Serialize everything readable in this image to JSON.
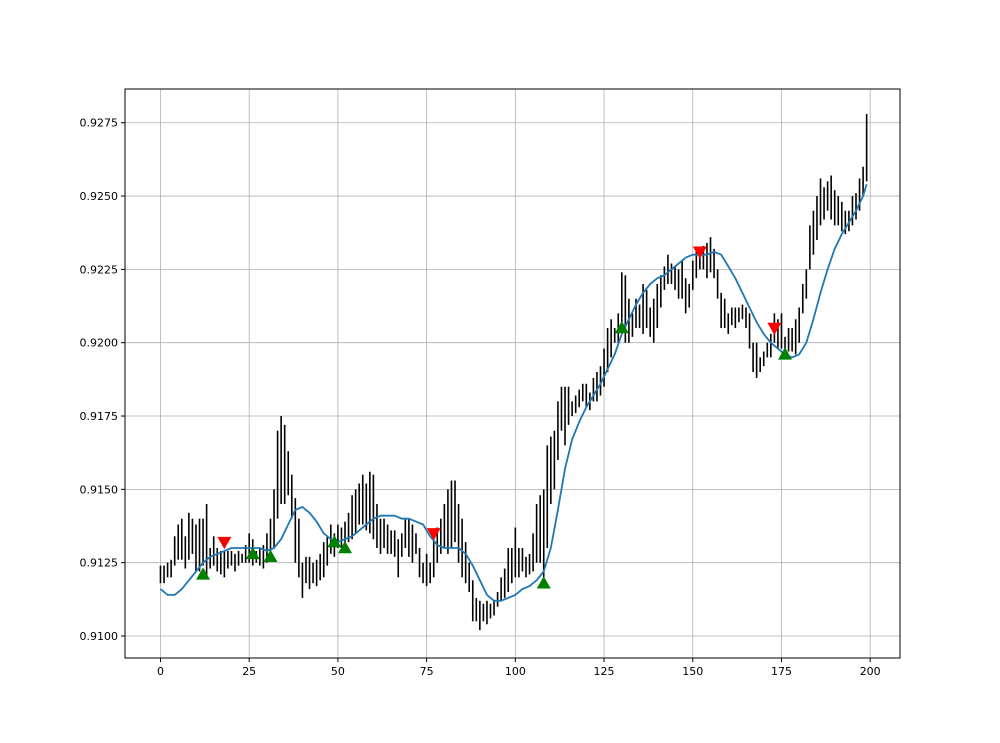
{
  "chart_data": {
    "type": "line",
    "title": "",
    "xlabel": "",
    "ylabel": "",
    "xlim": [
      -10,
      208.4
    ],
    "ylim": [
      0.90925,
      0.92865
    ],
    "x_ticks": [
      0,
      25,
      50,
      75,
      100,
      125,
      150,
      175,
      200
    ],
    "y_ticks": [
      0.91,
      0.9125,
      0.915,
      0.9175,
      0.92,
      0.9225,
      0.925,
      0.9275
    ],
    "x_tick_labels": [
      "0",
      "25",
      "50",
      "75",
      "100",
      "125",
      "150",
      "175",
      "200"
    ],
    "y_tick_labels": [
      "0.9100",
      "0.9125",
      "0.9150",
      "0.9175",
      "0.9200",
      "0.9225",
      "0.9250",
      "0.9275"
    ],
    "grid": true,
    "colors": {
      "bars": "#000000",
      "smooth_line": "#1f77b4",
      "buy_marker": "#008000",
      "sell_marker": "#ff0000",
      "grid": "#b0b0b0"
    },
    "ohlc_ranges": [
      [
        0,
        0.9118,
        0.9124
      ],
      [
        1,
        0.9118,
        0.9124
      ],
      [
        2,
        0.912,
        0.9125
      ],
      [
        3,
        0.912,
        0.9126
      ],
      [
        4,
        0.9124,
        0.9134
      ],
      [
        5,
        0.9126,
        0.9138
      ],
      [
        6,
        0.9126,
        0.914
      ],
      [
        7,
        0.9123,
        0.9134
      ],
      [
        8,
        0.9126,
        0.9142
      ],
      [
        9,
        0.9128,
        0.914
      ],
      [
        10,
        0.9122,
        0.9138
      ],
      [
        11,
        0.9122,
        0.914
      ],
      [
        12,
        0.9124,
        0.914
      ],
      [
        13,
        0.912,
        0.9145
      ],
      [
        14,
        0.9123,
        0.913
      ],
      [
        15,
        0.9124,
        0.9134
      ],
      [
        16,
        0.9122,
        0.913
      ],
      [
        17,
        0.9121,
        0.9129
      ],
      [
        18,
        0.912,
        0.9129
      ],
      [
        19,
        0.9123,
        0.9129
      ],
      [
        20,
        0.9124,
        0.9129
      ],
      [
        21,
        0.9122,
        0.9128
      ],
      [
        22,
        0.9124,
        0.9129
      ],
      [
        23,
        0.9125,
        0.9128
      ],
      [
        24,
        0.9125,
        0.9131
      ],
      [
        25,
        0.9125,
        0.9135
      ],
      [
        26,
        0.9124,
        0.9133
      ],
      [
        27,
        0.9125,
        0.9129
      ],
      [
        28,
        0.9124,
        0.913
      ],
      [
        29,
        0.9123,
        0.9131
      ],
      [
        30,
        0.9125,
        0.9135
      ],
      [
        31,
        0.9126,
        0.914
      ],
      [
        32,
        0.913,
        0.915
      ],
      [
        33,
        0.914,
        0.917
      ],
      [
        34,
        0.9145,
        0.9175
      ],
      [
        35,
        0.9145,
        0.9172
      ],
      [
        36,
        0.9148,
        0.9163
      ],
      [
        37,
        0.914,
        0.9155
      ],
      [
        38,
        0.9125,
        0.9147
      ],
      [
        39,
        0.912,
        0.914
      ],
      [
        40,
        0.9113,
        0.9125
      ],
      [
        41,
        0.9118,
        0.9127
      ],
      [
        42,
        0.9116,
        0.9127
      ],
      [
        43,
        0.9118,
        0.9125
      ],
      [
        44,
        0.9117,
        0.9126
      ],
      [
        45,
        0.9119,
        0.9128
      ],
      [
        46,
        0.912,
        0.9132
      ],
      [
        47,
        0.9124,
        0.9134
      ],
      [
        48,
        0.9128,
        0.9138
      ],
      [
        49,
        0.9127,
        0.9135
      ],
      [
        50,
        0.913,
        0.9138
      ],
      [
        51,
        0.913,
        0.9137
      ],
      [
        52,
        0.9131,
        0.9139
      ],
      [
        53,
        0.9132,
        0.9142
      ],
      [
        54,
        0.9133,
        0.9148
      ],
      [
        55,
        0.9135,
        0.915
      ],
      [
        56,
        0.9138,
        0.9152
      ],
      [
        57,
        0.9138,
        0.9155
      ],
      [
        58,
        0.9136,
        0.9152
      ],
      [
        59,
        0.9135,
        0.9156
      ],
      [
        60,
        0.9133,
        0.9155
      ],
      [
        61,
        0.913,
        0.9145
      ],
      [
        62,
        0.9128,
        0.914
      ],
      [
        63,
        0.913,
        0.914
      ],
      [
        64,
        0.9128,
        0.9138
      ],
      [
        65,
        0.9128,
        0.9136
      ],
      [
        66,
        0.9127,
        0.9136
      ],
      [
        67,
        0.912,
        0.9133
      ],
      [
        68,
        0.9127,
        0.9135
      ],
      [
        69,
        0.913,
        0.914
      ],
      [
        70,
        0.9127,
        0.914
      ],
      [
        71,
        0.9125,
        0.9138
      ],
      [
        72,
        0.9128,
        0.9135
      ],
      [
        73,
        0.912,
        0.913
      ],
      [
        74,
        0.9118,
        0.9125
      ],
      [
        75,
        0.9117,
        0.9128
      ],
      [
        76,
        0.9118,
        0.9125
      ],
      [
        77,
        0.912,
        0.9133
      ],
      [
        78,
        0.9125,
        0.9137
      ],
      [
        79,
        0.9128,
        0.914
      ],
      [
        80,
        0.913,
        0.9145
      ],
      [
        81,
        0.9128,
        0.915
      ],
      [
        82,
        0.913,
        0.9153
      ],
      [
        83,
        0.9132,
        0.9153
      ],
      [
        84,
        0.9125,
        0.9145
      ],
      [
        85,
        0.912,
        0.914
      ],
      [
        86,
        0.9118,
        0.9132
      ],
      [
        87,
        0.9115,
        0.9125
      ],
      [
        88,
        0.9105,
        0.9119
      ],
      [
        89,
        0.9105,
        0.9113
      ],
      [
        90,
        0.9102,
        0.9112
      ],
      [
        91,
        0.9105,
        0.9111
      ],
      [
        92,
        0.9104,
        0.9112
      ],
      [
        93,
        0.9106,
        0.9111
      ],
      [
        94,
        0.9107,
        0.9112
      ],
      [
        95,
        0.911,
        0.9115
      ],
      [
        96,
        0.9112,
        0.912
      ],
      [
        97,
        0.9113,
        0.9123
      ],
      [
        98,
        0.9115,
        0.913
      ],
      [
        99,
        0.9118,
        0.913
      ],
      [
        100,
        0.912,
        0.9137
      ],
      [
        101,
        0.912,
        0.913
      ],
      [
        102,
        0.9122,
        0.913
      ],
      [
        103,
        0.912,
        0.9127
      ],
      [
        104,
        0.9121,
        0.9128
      ],
      [
        105,
        0.9122,
        0.9135
      ],
      [
        106,
        0.9125,
        0.9145
      ],
      [
        107,
        0.9125,
        0.9148
      ],
      [
        108,
        0.912,
        0.915
      ],
      [
        109,
        0.913,
        0.9165
      ],
      [
        110,
        0.9145,
        0.9168
      ],
      [
        111,
        0.915,
        0.917
      ],
      [
        112,
        0.916,
        0.918
      ],
      [
        113,
        0.917,
        0.9185
      ],
      [
        114,
        0.9165,
        0.9185
      ],
      [
        115,
        0.9172,
        0.9185
      ],
      [
        116,
        0.9175,
        0.918
      ],
      [
        117,
        0.9176,
        0.9182
      ],
      [
        118,
        0.9178,
        0.9184
      ],
      [
        119,
        0.918,
        0.9186
      ],
      [
        120,
        0.9178,
        0.9186
      ],
      [
        121,
        0.9177,
        0.9183
      ],
      [
        122,
        0.918,
        0.9188
      ],
      [
        123,
        0.918,
        0.919
      ],
      [
        124,
        0.9182,
        0.9192
      ],
      [
        125,
        0.9185,
        0.9198
      ],
      [
        126,
        0.919,
        0.9205
      ],
      [
        127,
        0.9195,
        0.9208
      ],
      [
        128,
        0.92,
        0.9205
      ],
      [
        129,
        0.92,
        0.921
      ],
      [
        130,
        0.9203,
        0.9224
      ],
      [
        131,
        0.92,
        0.9223
      ],
      [
        132,
        0.92,
        0.9215
      ],
      [
        133,
        0.9202,
        0.921
      ],
      [
        134,
        0.9205,
        0.9215
      ],
      [
        135,
        0.9205,
        0.9213
      ],
      [
        136,
        0.9203,
        0.922
      ],
      [
        137,
        0.9205,
        0.9218
      ],
      [
        138,
        0.9202,
        0.9212
      ],
      [
        139,
        0.92,
        0.9215
      ],
      [
        140,
        0.9205,
        0.922
      ],
      [
        141,
        0.9212,
        0.9223
      ],
      [
        142,
        0.9218,
        0.9226
      ],
      [
        143,
        0.922,
        0.923
      ],
      [
        144,
        0.922,
        0.9227
      ],
      [
        145,
        0.9218,
        0.9226
      ],
      [
        146,
        0.9215,
        0.9225
      ],
      [
        147,
        0.9215,
        0.9228
      ],
      [
        148,
        0.921,
        0.9222
      ],
      [
        149,
        0.9212,
        0.922
      ],
      [
        150,
        0.9218,
        0.9228
      ],
      [
        151,
        0.9222,
        0.9232
      ],
      [
        152,
        0.9225,
        0.923
      ],
      [
        153,
        0.9225,
        0.9233
      ],
      [
        154,
        0.9222,
        0.9234
      ],
      [
        155,
        0.9224,
        0.9236
      ],
      [
        156,
        0.9222,
        0.9232
      ],
      [
        157,
        0.9215,
        0.9225
      ],
      [
        158,
        0.9205,
        0.9217
      ],
      [
        159,
        0.9205,
        0.9215
      ],
      [
        160,
        0.9203,
        0.921
      ],
      [
        161,
        0.9206,
        0.9212
      ],
      [
        162,
        0.9205,
        0.9212
      ],
      [
        163,
        0.9207,
        0.9212
      ],
      [
        164,
        0.9208,
        0.9213
      ],
      [
        165,
        0.9205,
        0.9212
      ],
      [
        166,
        0.9198,
        0.921
      ],
      [
        167,
        0.919,
        0.92
      ],
      [
        168,
        0.9188,
        0.92
      ],
      [
        169,
        0.919,
        0.9195
      ],
      [
        170,
        0.9192,
        0.9197
      ],
      [
        171,
        0.9195,
        0.92
      ],
      [
        172,
        0.9195,
        0.9203
      ],
      [
        173,
        0.92,
        0.921
      ],
      [
        174,
        0.9198,
        0.9208
      ],
      [
        175,
        0.9198,
        0.921
      ],
      [
        176,
        0.9195,
        0.9202
      ],
      [
        177,
        0.9197,
        0.9205
      ],
      [
        178,
        0.9197,
        0.9205
      ],
      [
        179,
        0.9196,
        0.9208
      ],
      [
        180,
        0.92,
        0.9212
      ],
      [
        181,
        0.921,
        0.922
      ],
      [
        182,
        0.9215,
        0.9225
      ],
      [
        183,
        0.9225,
        0.924
      ],
      [
        184,
        0.923,
        0.9245
      ],
      [
        185,
        0.9235,
        0.925
      ],
      [
        186,
        0.924,
        0.9256
      ],
      [
        187,
        0.9242,
        0.9253
      ],
      [
        188,
        0.9245,
        0.9255
      ],
      [
        189,
        0.9242,
        0.9257
      ],
      [
        190,
        0.924,
        0.9252
      ],
      [
        191,
        0.924,
        0.925
      ],
      [
        192,
        0.9238,
        0.9248
      ],
      [
        193,
        0.9237,
        0.9245
      ],
      [
        194,
        0.9238,
        0.9245
      ],
      [
        195,
        0.924,
        0.925
      ],
      [
        196,
        0.9242,
        0.9251
      ],
      [
        197,
        0.9245,
        0.9256
      ],
      [
        198,
        0.925,
        0.926
      ],
      [
        199,
        0.9255,
        0.9278
      ]
    ],
    "smooth_line": [
      [
        0,
        0.9116
      ],
      [
        2,
        0.9114
      ],
      [
        4,
        0.9114
      ],
      [
        6,
        0.9116
      ],
      [
        8,
        0.9119
      ],
      [
        10,
        0.9122
      ],
      [
        12,
        0.9125
      ],
      [
        14,
        0.9127
      ],
      [
        16,
        0.9128
      ],
      [
        18,
        0.9129
      ],
      [
        20,
        0.913
      ],
      [
        22,
        0.913
      ],
      [
        24,
        0.913
      ],
      [
        26,
        0.913
      ],
      [
        28,
        0.913
      ],
      [
        30,
        0.9129
      ],
      [
        32,
        0.913
      ],
      [
        34,
        0.9133
      ],
      [
        36,
        0.9138
      ],
      [
        38,
        0.9143
      ],
      [
        40,
        0.9144
      ],
      [
        42,
        0.9142
      ],
      [
        44,
        0.9139
      ],
      [
        46,
        0.9135
      ],
      [
        48,
        0.9133
      ],
      [
        50,
        0.9132
      ],
      [
        52,
        0.9133
      ],
      [
        54,
        0.9134
      ],
      [
        56,
        0.9136
      ],
      [
        58,
        0.9138
      ],
      [
        60,
        0.914
      ],
      [
        62,
        0.9141
      ],
      [
        64,
        0.9141
      ],
      [
        66,
        0.9141
      ],
      [
        68,
        0.914
      ],
      [
        70,
        0.914
      ],
      [
        72,
        0.9139
      ],
      [
        74,
        0.9138
      ],
      [
        76,
        0.9134
      ],
      [
        78,
        0.9131
      ],
      [
        80,
        0.913
      ],
      [
        82,
        0.913
      ],
      [
        84,
        0.913
      ],
      [
        86,
        0.9128
      ],
      [
        88,
        0.9124
      ],
      [
        90,
        0.9119
      ],
      [
        92,
        0.9114
      ],
      [
        94,
        0.9112
      ],
      [
        96,
        0.9112
      ],
      [
        98,
        0.9113
      ],
      [
        100,
        0.9114
      ],
      [
        102,
        0.9116
      ],
      [
        104,
        0.9117
      ],
      [
        106,
        0.9119
      ],
      [
        108,
        0.9122
      ],
      [
        110,
        0.913
      ],
      [
        112,
        0.9143
      ],
      [
        114,
        0.9157
      ],
      [
        116,
        0.9167
      ],
      [
        118,
        0.9173
      ],
      [
        120,
        0.9178
      ],
      [
        122,
        0.9182
      ],
      [
        124,
        0.9186
      ],
      [
        126,
        0.9191
      ],
      [
        128,
        0.9196
      ],
      [
        130,
        0.9203
      ],
      [
        132,
        0.9208
      ],
      [
        134,
        0.9213
      ],
      [
        136,
        0.9217
      ],
      [
        138,
        0.922
      ],
      [
        140,
        0.9222
      ],
      [
        142,
        0.9223
      ],
      [
        144,
        0.9225
      ],
      [
        146,
        0.9227
      ],
      [
        148,
        0.9229
      ],
      [
        150,
        0.923
      ],
      [
        152,
        0.923
      ],
      [
        154,
        0.923
      ],
      [
        156,
        0.9231
      ],
      [
        158,
        0.923
      ],
      [
        160,
        0.9226
      ],
      [
        162,
        0.9222
      ],
      [
        164,
        0.9217
      ],
      [
        166,
        0.9212
      ],
      [
        168,
        0.9207
      ],
      [
        170,
        0.9203
      ],
      [
        172,
        0.92
      ],
      [
        174,
        0.9198
      ],
      [
        176,
        0.9196
      ],
      [
        178,
        0.9195
      ],
      [
        180,
        0.9196
      ],
      [
        182,
        0.92
      ],
      [
        184,
        0.9208
      ],
      [
        186,
        0.9217
      ],
      [
        188,
        0.9225
      ],
      [
        190,
        0.9232
      ],
      [
        192,
        0.9237
      ],
      [
        194,
        0.9241
      ],
      [
        196,
        0.9245
      ],
      [
        198,
        0.925
      ],
      [
        199,
        0.9254
      ]
    ],
    "buy_signals": [
      [
        12,
        0.9121
      ],
      [
        26,
        0.9128
      ],
      [
        31,
        0.9127
      ],
      [
        49,
        0.9132
      ],
      [
        52,
        0.913
      ],
      [
        108,
        0.9118
      ],
      [
        130,
        0.9205
      ],
      [
        176,
        0.9196
      ]
    ],
    "sell_signals": [
      [
        18,
        0.9132
      ],
      [
        77,
        0.9135
      ],
      [
        152,
        0.9231
      ],
      [
        173,
        0.9205
      ]
    ]
  }
}
